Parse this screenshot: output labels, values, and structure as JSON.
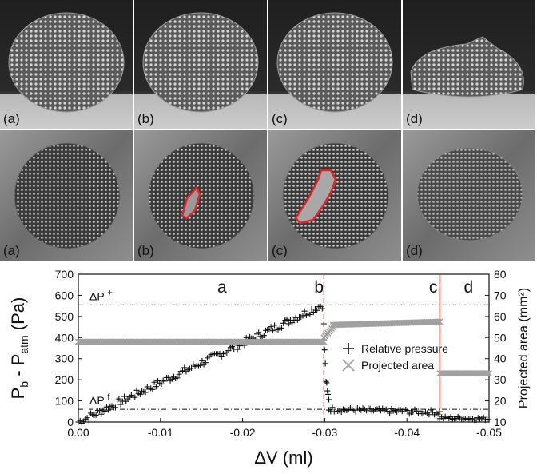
{
  "photo_rows": [
    {
      "panels": [
        "(a)",
        "(b)",
        "(c)",
        "(d)"
      ]
    },
    {
      "panels": [
        "(a)",
        "(b)",
        "(c)",
        "(d)"
      ]
    }
  ],
  "chart_data": {
    "type": "scatter",
    "xlabel": "ΔV (ml)",
    "ylabel_left": "P_b - P_atm (Pa)",
    "ylabel_left_parts": {
      "p": "P",
      "b": "b",
      "minus": " - P",
      "atm": "atm",
      "unit": "(Pa)"
    },
    "ylabel_right": "Projected area (mm²)",
    "xlim": [
      0.0,
      -0.05
    ],
    "ylim_left": [
      0,
      700
    ],
    "ylim_right": [
      10,
      80
    ],
    "xticks": [
      "0.00",
      "-0.01",
      "-0.02",
      "-0.03",
      "-0.04",
      "-0.05"
    ],
    "yticks_left": [
      "0",
      "100",
      "200",
      "300",
      "400",
      "500",
      "600",
      "700"
    ],
    "yticks_right": [
      "10",
      "20",
      "30",
      "40",
      "50",
      "60",
      "70",
      "80"
    ],
    "stage_labels": [
      {
        "text": "a",
        "x": -0.0175
      },
      {
        "text": "b",
        "x": -0.0293
      },
      {
        "text": "c",
        "x": -0.0432
      },
      {
        "text": "d",
        "x": -0.0475
      }
    ],
    "threshold_lines": [
      {
        "label": "ΔP",
        "sup": "+",
        "y": 555
      },
      {
        "label": "ΔP",
        "sup": "f",
        "y": 60
      }
    ],
    "vertical_markers": [
      {
        "x": -0.0299,
        "style": "dashed",
        "color": "#c0392b"
      },
      {
        "x": -0.044,
        "style": "solid",
        "color": "#c0392b"
      }
    ],
    "series": [
      {
        "name": "Relative pressure",
        "marker": "+",
        "axis": "left",
        "color": "#111111",
        "segments": [
          {
            "x_from": 0.0,
            "x_to": -0.0297,
            "y_from": 0,
            "y_to": 555,
            "noise": 18
          },
          {
            "x_from": -0.0299,
            "x_to": -0.0305,
            "y_from": 450,
            "y_to": 120,
            "noise": 30
          },
          {
            "x_from": -0.0305,
            "x_to": -0.044,
            "y_from": 60,
            "y_to": 45,
            "noise": 12
          },
          {
            "x_from": -0.044,
            "x_to": -0.05,
            "y_from": 20,
            "y_to": 15,
            "noise": 8
          }
        ]
      },
      {
        "name": "Projected area",
        "marker": "x",
        "axis": "right",
        "color": "#a0a0a0",
        "segments": [
          {
            "x_from": 0.0,
            "x_to": -0.0299,
            "y_from": 48,
            "y_to": 48
          },
          {
            "x_from": -0.0299,
            "x_to": -0.031,
            "y_from": 50,
            "y_to": 55
          },
          {
            "x_from": -0.031,
            "x_to": -0.044,
            "y_from": 56,
            "y_to": 57.5
          },
          {
            "x_from": -0.044,
            "x_to": -0.05,
            "y_from": 33,
            "y_to": 33
          }
        ]
      }
    ],
    "legend": {
      "position": "right-middle",
      "entries": [
        "Relative pressure",
        "Projected area"
      ]
    }
  },
  "colors": {
    "outline": "#e0242a",
    "photo_bg_top": "#262626",
    "photo_bg_bottom": "#7a7a7a"
  }
}
